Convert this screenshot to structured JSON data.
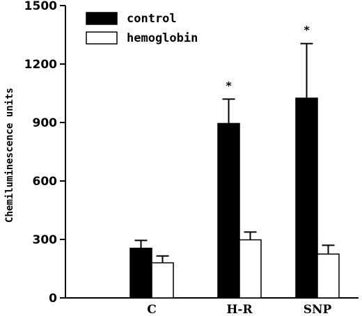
{
  "chart_data": {
    "type": "bar",
    "title": "",
    "xlabel": "",
    "ylabel": "Chemiluminescence units",
    "ylim": [
      0,
      1500
    ],
    "yticks": [
      0,
      300,
      600,
      900,
      1200,
      1500
    ],
    "categories": [
      "C",
      "H-R",
      "SNP"
    ],
    "series": [
      {
        "name": "control",
        "color": "#000000",
        "values": [
          255,
          895,
          1025
        ],
        "errors": [
          40,
          125,
          280
        ]
      },
      {
        "name": "hemoglobin",
        "color": "#ffffff",
        "values": [
          180,
          298,
          225
        ],
        "errors": [
          35,
          40,
          45
        ]
      }
    ],
    "annotations": [
      {
        "category": "H-R",
        "series": "control",
        "text": "*"
      },
      {
        "category": "SNP",
        "series": "control",
        "text": "*"
      }
    ],
    "grid": false,
    "legend": "top-left"
  }
}
